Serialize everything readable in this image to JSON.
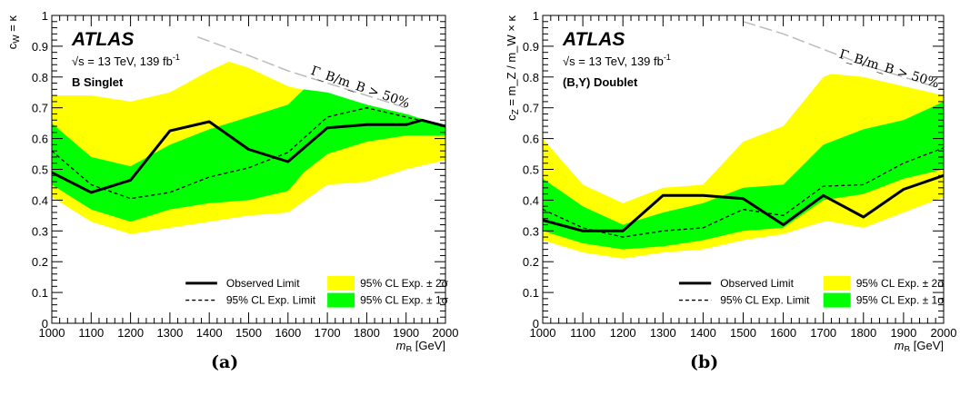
{
  "chart_data": [
    {
      "type": "line",
      "caption": "(a)",
      "experiment": "ATLAS",
      "energy_text": "√s = 13 TeV, 139 fb",
      "energy_superscript": "-1",
      "model": "B Singlet",
      "xlabel_main": "m",
      "xlabel_sub": "B",
      "xlabel_unit": " [GeV]",
      "ylabel_main": "c",
      "ylabel_sub": "W",
      "ylabel_rest": " = κ",
      "xlim": [
        1000,
        2000
      ],
      "ylim": [
        0,
        1
      ],
      "x_ticks": [
        1000,
        1100,
        1200,
        1300,
        1400,
        1500,
        1600,
        1700,
        1800,
        1900,
        2000
      ],
      "y_ticks": [
        0,
        0.1,
        0.2,
        0.3,
        0.4,
        0.5,
        0.6,
        0.7,
        0.8,
        0.9,
        1
      ],
      "width_annotation": "Γ_B/m_B > 50%",
      "width_boundary": {
        "x": [
          1370,
          1500,
          1600,
          1700,
          1800,
          1900
        ],
        "y": [
          0.93,
          0.87,
          0.82,
          0.78,
          0.74,
          0.7
        ]
      },
      "band_2sigma": {
        "x": [
          1000,
          1100,
          1200,
          1300,
          1400,
          1450,
          1500,
          1600,
          1700,
          1800,
          1900,
          2000
        ],
        "upper": [
          0.74,
          0.74,
          0.72,
          0.75,
          0.82,
          0.85,
          0.83,
          0.77,
          0.74,
          0.71,
          0.67,
          0.64
        ],
        "lower": [
          0.41,
          0.33,
          0.29,
          0.31,
          0.33,
          0.34,
          0.35,
          0.36,
          0.45,
          0.46,
          0.5,
          0.53
        ]
      },
      "band_1sigma": {
        "x": [
          1000,
          1100,
          1200,
          1300,
          1400,
          1500,
          1600,
          1640,
          1700,
          1800,
          1900,
          2000
        ],
        "upper": [
          0.65,
          0.54,
          0.51,
          0.58,
          0.63,
          0.67,
          0.71,
          0.76,
          0.75,
          0.71,
          0.68,
          0.64
        ],
        "lower": [
          0.45,
          0.37,
          0.33,
          0.37,
          0.39,
          0.4,
          0.43,
          0.49,
          0.55,
          0.59,
          0.61,
          0.61
        ]
      },
      "series": [
        {
          "name": "Observed Limit",
          "x": [
            1000,
            1100,
            1200,
            1300,
            1400,
            1500,
            1600,
            1700,
            1800,
            1900,
            1940,
            2000
          ],
          "y": [
            0.49,
            0.425,
            0.465,
            0.625,
            0.655,
            0.565,
            0.525,
            0.635,
            0.645,
            0.645,
            0.66,
            0.64
          ]
        },
        {
          "name": "95% CL Exp. Limit",
          "x": [
            1000,
            1100,
            1200,
            1300,
            1400,
            1500,
            1600,
            1700,
            1800,
            1900,
            2000
          ],
          "y": [
            0.56,
            0.45,
            0.405,
            0.425,
            0.475,
            0.505,
            0.555,
            0.67,
            0.7,
            0.67,
            0.64
          ]
        }
      ],
      "legend": {
        "observed": "Observed Limit",
        "expected": "95% CL Exp. Limit",
        "band2": "95% CL Exp. ± 2σ",
        "band1": "95% CL Exp. ± 1σ"
      },
      "colors": {
        "band_2sigma": "#ffff00",
        "band_1sigma": "#00ff00",
        "observed": "#000000",
        "boundary": "#bbbbbb"
      }
    },
    {
      "type": "line",
      "caption": "(b)",
      "experiment": "ATLAS",
      "energy_text": "√s = 13 TeV, 139 fb",
      "energy_superscript": "-1",
      "model": "(B,Y) Doublet",
      "xlabel_main": "m",
      "xlabel_sub": "B",
      "xlabel_unit": " [GeV]",
      "ylabel_main": "c",
      "ylabel_sub": "Z",
      "ylabel_rest": " = m_Z / m_W × κ",
      "xlim": [
        1000,
        2000
      ],
      "ylim": [
        0,
        1
      ],
      "x_ticks": [
        1000,
        1100,
        1200,
        1300,
        1400,
        1500,
        1600,
        1700,
        1800,
        1900,
        2000
      ],
      "y_ticks": [
        0,
        0.1,
        0.2,
        0.3,
        0.4,
        0.5,
        0.6,
        0.7,
        0.8,
        0.9,
        1
      ],
      "width_annotation": "Γ_B/m_B > 50%",
      "width_boundary": {
        "x": [
          1500,
          1600,
          1700,
          1800,
          1900,
          2000
        ],
        "y": [
          0.98,
          0.94,
          0.89,
          0.84,
          0.8,
          0.76
        ]
      },
      "band_2sigma": {
        "x": [
          1000,
          1100,
          1200,
          1300,
          1400,
          1500,
          1600,
          1700,
          1720,
          1800,
          1900,
          2000
        ],
        "upper": [
          0.6,
          0.45,
          0.39,
          0.44,
          0.45,
          0.59,
          0.64,
          0.8,
          0.81,
          0.8,
          0.77,
          0.74
        ],
        "lower": [
          0.27,
          0.23,
          0.21,
          0.23,
          0.24,
          0.27,
          0.29,
          0.33,
          0.33,
          0.31,
          0.36,
          0.41
        ]
      },
      "band_1sigma": {
        "x": [
          1000,
          1100,
          1200,
          1300,
          1400,
          1500,
          1600,
          1700,
          1800,
          1900,
          2000
        ],
        "upper": [
          0.47,
          0.38,
          0.32,
          0.36,
          0.39,
          0.44,
          0.45,
          0.58,
          0.63,
          0.66,
          0.72
        ],
        "lower": [
          0.3,
          0.26,
          0.24,
          0.25,
          0.27,
          0.3,
          0.31,
          0.4,
          0.42,
          0.47,
          0.5
        ]
      },
      "series": [
        {
          "name": "Observed Limit",
          "x": [
            1000,
            1100,
            1200,
            1300,
            1400,
            1500,
            1600,
            1700,
            1800,
            1900,
            2000
          ],
          "y": [
            0.335,
            0.3,
            0.3,
            0.415,
            0.415,
            0.405,
            0.32,
            0.415,
            0.345,
            0.435,
            0.48
          ]
        },
        {
          "name": "95% CL Exp. Limit",
          "x": [
            1000,
            1100,
            1200,
            1300,
            1400,
            1500,
            1600,
            1700,
            1800,
            1900,
            2000
          ],
          "y": [
            0.37,
            0.31,
            0.28,
            0.3,
            0.31,
            0.37,
            0.35,
            0.445,
            0.45,
            0.52,
            0.57
          ]
        }
      ],
      "legend": {
        "observed": "Observed Limit",
        "expected": "95% CL Exp. Limit",
        "band2": "95% CL Exp. ± 2σ",
        "band1": "95% CL Exp. ± 1σ"
      },
      "colors": {
        "band_2sigma": "#ffff00",
        "band_1sigma": "#00ff00",
        "observed": "#000000",
        "boundary": "#bbbbbb"
      }
    }
  ]
}
